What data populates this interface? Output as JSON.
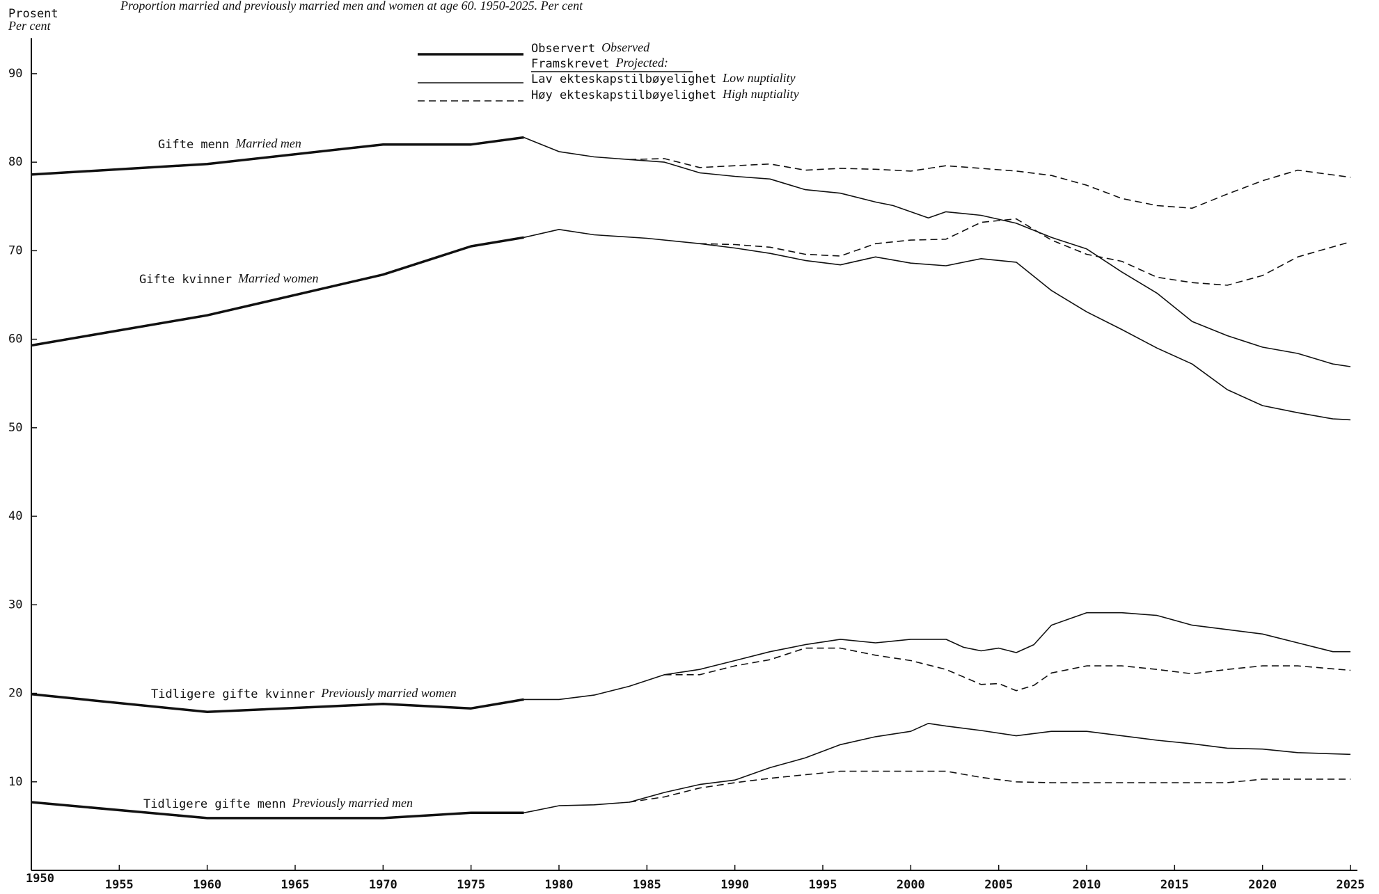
{
  "chart_data": {
    "type": "line",
    "title": "Proportion married and previously married men and women at age 60.  1950-2025.  Per cent",
    "y_label": "Prosent",
    "y_label_en": "Per cent",
    "xlim": [
      1950,
      2025
    ],
    "xticks": [
      1950,
      1955,
      1960,
      1965,
      1970,
      1975,
      1980,
      1985,
      1990,
      1995,
      2000,
      2005,
      2010,
      2015,
      2020,
      2025
    ],
    "ylim": [
      0,
      94
    ],
    "yticks": [
      10,
      20,
      30,
      40,
      50,
      60,
      70,
      80,
      90
    ],
    "color": "#111111",
    "legend": [
      {
        "label": "Observert",
        "label_en": "Observed",
        "line": "thick"
      },
      {
        "label": "Framskrevet",
        "label_en": "Projected:"
      },
      {
        "label": "Lav  ekteskapstilbøyelighet",
        "label_en": "Low nuptiality",
        "line": "solid"
      },
      {
        "label": "Høy ekteskapstilbøyelighet",
        "label_en": "High nuptiality",
        "line": "dashed"
      }
    ],
    "series": [
      {
        "name": "Gifte menn",
        "name_en": "Married men",
        "observed": {
          "x": [
            1950,
            1960,
            1970,
            1975,
            1978
          ],
          "values": [
            78.6,
            79.8,
            82.0,
            82.0,
            82.8
          ]
        },
        "low": {
          "x": [
            1978,
            1980,
            1982,
            1984,
            1986,
            1988,
            1990,
            1992,
            1994,
            1996,
            1998,
            1999,
            2001,
            2002,
            2004,
            2006,
            2008,
            2010,
            2012,
            2014,
            2016,
            2018,
            2020,
            2022,
            2024,
            2025
          ],
          "values": [
            82.8,
            81.2,
            80.6,
            80.3,
            80.0,
            78.8,
            78.4,
            78.1,
            76.9,
            76.5,
            75.5,
            75.1,
            73.7,
            74.4,
            74.0,
            73.1,
            71.5,
            70.2,
            67.6,
            65.2,
            62.0,
            60.4,
            59.1,
            58.4,
            57.2,
            56.9
          ]
        },
        "high": {
          "x": [
            1984,
            1986,
            1988,
            1990,
            1992,
            1994,
            1996,
            1998,
            2000,
            2002,
            2004,
            2006,
            2008,
            2010,
            2012,
            2014,
            2016,
            2018,
            2020,
            2022,
            2025
          ],
          "values": [
            80.3,
            80.4,
            79.4,
            79.6,
            79.8,
            79.1,
            79.3,
            79.2,
            79.0,
            79.6,
            79.3,
            79.0,
            78.5,
            77.4,
            75.9,
            75.1,
            74.8,
            76.4,
            77.9,
            79.1,
            78.3
          ]
        }
      },
      {
        "name": "Gifte kvinner",
        "name_en": "Married women",
        "observed": {
          "x": [
            1950,
            1960,
            1970,
            1975,
            1978
          ],
          "values": [
            59.3,
            62.7,
            67.3,
            70.5,
            71.5
          ]
        },
        "low": {
          "x": [
            1978,
            1980,
            1982,
            1985,
            1988,
            1990,
            1992,
            1994,
            1996,
            1998,
            2000,
            2002,
            2004,
            2006,
            2008,
            2010,
            2012,
            2014,
            2016,
            2018,
            2020,
            2022,
            2024,
            2025
          ],
          "values": [
            71.5,
            72.4,
            71.8,
            71.4,
            70.8,
            70.3,
            69.7,
            68.9,
            68.4,
            69.3,
            68.6,
            68.3,
            69.1,
            68.7,
            65.5,
            63.1,
            61.1,
            59.0,
            57.2,
            54.3,
            52.5,
            51.7,
            51.0,
            50.9
          ]
        },
        "high": {
          "x": [
            1988,
            1990,
            1992,
            1994,
            1996,
            1998,
            2000,
            2002,
            2004,
            2006,
            2008,
            2010,
            2012,
            2014,
            2016,
            2018,
            2020,
            2022,
            2025
          ],
          "values": [
            70.8,
            70.7,
            70.4,
            69.6,
            69.4,
            70.8,
            71.2,
            71.3,
            73.2,
            73.6,
            71.2,
            69.6,
            68.8,
            67.0,
            66.4,
            66.1,
            67.2,
            69.3,
            71.0
          ]
        }
      },
      {
        "name": "Tidligere gifte kvinner",
        "name_en": "Previously married women",
        "observed": {
          "x": [
            1950,
            1960,
            1970,
            1975,
            1978
          ],
          "values": [
            19.9,
            17.9,
            18.8,
            18.3,
            19.3
          ]
        },
        "low": {
          "x": [
            1978,
            1980,
            1982,
            1984,
            1986,
            1988,
            1990,
            1992,
            1994,
            1996,
            1998,
            2000,
            2002,
            2003,
            2004,
            2005,
            2006,
            2007,
            2008,
            2010,
            2012,
            2014,
            2016,
            2018,
            2020,
            2022,
            2024,
            2025
          ],
          "values": [
            19.3,
            19.3,
            19.8,
            20.8,
            22.1,
            22.7,
            23.7,
            24.7,
            25.5,
            26.1,
            25.7,
            26.1,
            26.1,
            25.2,
            24.8,
            25.1,
            24.6,
            25.5,
            27.7,
            29.1,
            29.1,
            28.8,
            27.7,
            27.2,
            26.7,
            25.7,
            24.7,
            24.7
          ]
        },
        "high": {
          "x": [
            1986,
            1988,
            1990,
            1992,
            1994,
            1996,
            1998,
            2000,
            2002,
            2004,
            2005,
            2006,
            2007,
            2008,
            2010,
            2012,
            2014,
            2016,
            2018,
            2020,
            2022,
            2025
          ],
          "values": [
            22.1,
            22.1,
            23.1,
            23.8,
            25.1,
            25.1,
            24.3,
            23.7,
            22.7,
            21.0,
            21.1,
            20.3,
            20.9,
            22.3,
            23.1,
            23.1,
            22.7,
            22.2,
            22.7,
            23.1,
            23.1,
            22.6
          ]
        }
      },
      {
        "name": "Tidligere gifte menn",
        "name_en": "Previously married men",
        "observed": {
          "x": [
            1950,
            1960,
            1970,
            1975,
            1978
          ],
          "values": [
            7.7,
            5.9,
            5.9,
            6.5,
            6.5
          ]
        },
        "low": {
          "x": [
            1978,
            1980,
            1982,
            1984,
            1986,
            1988,
            1990,
            1992,
            1994,
            1996,
            1998,
            2000,
            2001,
            2002,
            2004,
            2006,
            2008,
            2010,
            2012,
            2014,
            2016,
            2018,
            2020,
            2022,
            2025
          ],
          "values": [
            6.5,
            7.3,
            7.4,
            7.7,
            8.8,
            9.7,
            10.2,
            11.6,
            12.7,
            14.2,
            15.1,
            15.7,
            16.6,
            16.3,
            15.8,
            15.2,
            15.7,
            15.7,
            15.2,
            14.7,
            14.3,
            13.8,
            13.7,
            13.3,
            13.1
          ]
        },
        "high": {
          "x": [
            1984,
            1986,
            1988,
            1990,
            1992,
            1994,
            1996,
            1998,
            2000,
            2002,
            2004,
            2006,
            2008,
            2010,
            2012,
            2014,
            2016,
            2018,
            2020,
            2022,
            2025
          ],
          "values": [
            7.7,
            8.3,
            9.3,
            9.9,
            10.4,
            10.8,
            11.2,
            11.2,
            11.2,
            11.2,
            10.5,
            10.0,
            9.9,
            9.9,
            9.9,
            9.9,
            9.9,
            9.9,
            10.3,
            10.3,
            10.3
          ]
        }
      }
    ]
  }
}
